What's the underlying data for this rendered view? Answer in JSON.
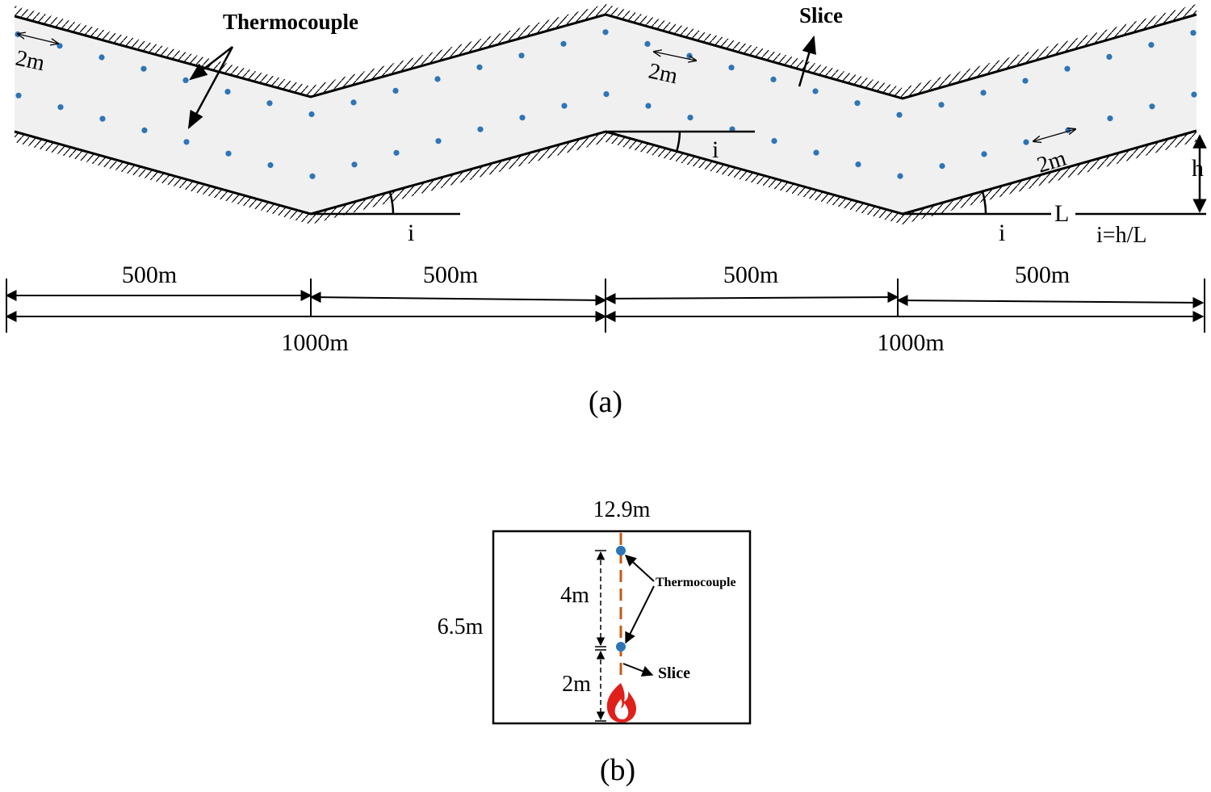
{
  "panel_a": {
    "caption": "(a)",
    "label_thermocouple": "Thermocouple",
    "label_slice": "Slice",
    "spacing_labels": [
      "2m",
      "2m",
      "2m"
    ],
    "angle_labels": [
      "i",
      "i",
      "i"
    ],
    "height_label": "h",
    "length_label": "L",
    "slope_formula": "i=h/L",
    "segment_dims": [
      "500m",
      "500m",
      "500m",
      "500m"
    ],
    "total_dims": [
      "1000m",
      "1000m"
    ],
    "colors": {
      "tunnel_fill": "#f0f0f0",
      "thermocouple": "#2e75b6",
      "line": "#000000"
    }
  },
  "panel_b": {
    "caption": "(b)",
    "width_label": "12.9m",
    "height_label": "6.5m",
    "upper_distance": "4m",
    "lower_distance": "2m",
    "label_thermocouple": "Thermocouple",
    "label_slice": "Slice",
    "colors": {
      "slice_line": "#c55a11",
      "thermocouple": "#2e75b6",
      "fire": "#e0201b"
    }
  }
}
